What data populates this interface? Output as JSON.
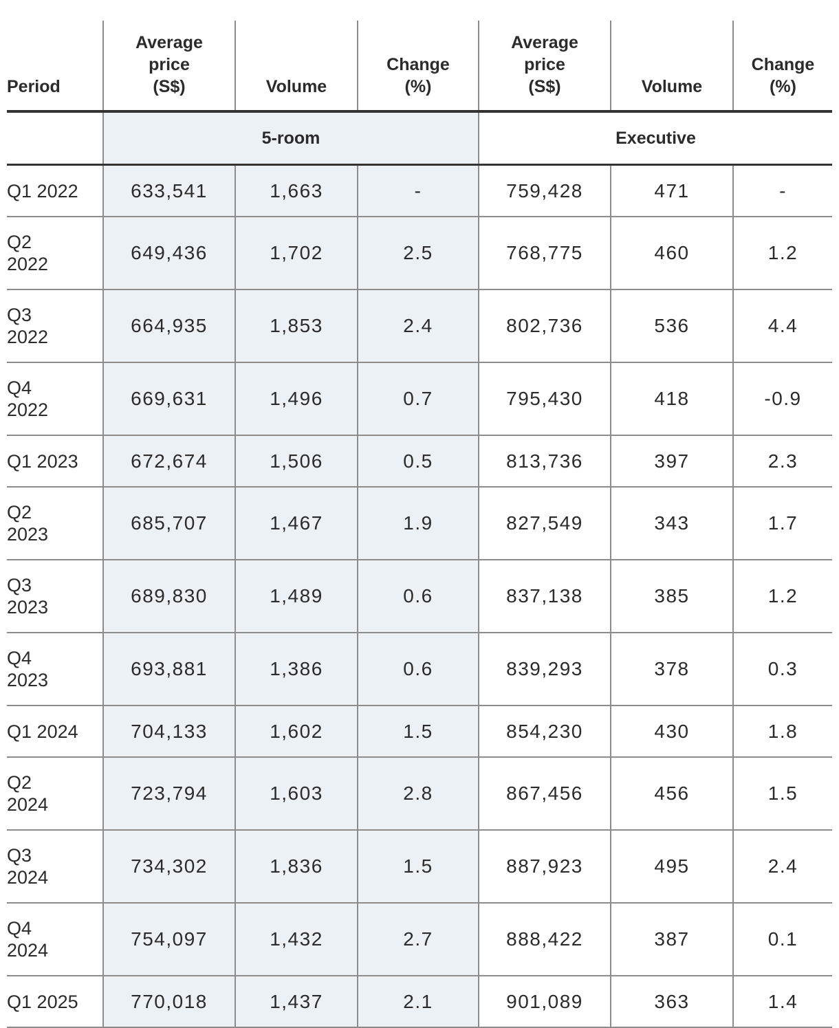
{
  "header": {
    "period": "Period",
    "avg_price": [
      "Average",
      "price",
      "(S$)"
    ],
    "volume": "Volume",
    "change": [
      "Change",
      "(%)"
    ]
  },
  "groups": {
    "five_room": "5-room",
    "executive": "Executive"
  },
  "rows": [
    {
      "q": "Q1",
      "y": "2022",
      "wrap": false,
      "p5": "633,541",
      "v5": "1,663",
      "c5": "-",
      "pe": "759,428",
      "ve": "471",
      "ce": "-"
    },
    {
      "q": "Q2",
      "y": "2022",
      "wrap": true,
      "p5": "649,436",
      "v5": "1,702",
      "c5": "2.5",
      "pe": "768,775",
      "ve": "460",
      "ce": "1.2"
    },
    {
      "q": "Q3",
      "y": "2022",
      "wrap": true,
      "p5": "664,935",
      "v5": "1,853",
      "c5": "2.4",
      "pe": "802,736",
      "ve": "536",
      "ce": "4.4"
    },
    {
      "q": "Q4",
      "y": "2022",
      "wrap": true,
      "p5": "669,631",
      "v5": "1,496",
      "c5": "0.7",
      "pe": "795,430",
      "ve": "418",
      "ce": "-0.9"
    },
    {
      "q": "Q1",
      "y": "2023",
      "wrap": false,
      "p5": "672,674",
      "v5": "1,506",
      "c5": "0.5",
      "pe": "813,736",
      "ve": "397",
      "ce": "2.3"
    },
    {
      "q": "Q2",
      "y": "2023",
      "wrap": true,
      "p5": "685,707",
      "v5": "1,467",
      "c5": "1.9",
      "pe": "827,549",
      "ve": "343",
      "ce": "1.7"
    },
    {
      "q": "Q3",
      "y": "2023",
      "wrap": true,
      "p5": "689,830",
      "v5": "1,489",
      "c5": "0.6",
      "pe": "837,138",
      "ve": "385",
      "ce": "1.2"
    },
    {
      "q": "Q4",
      "y": "2023",
      "wrap": true,
      "p5": "693,881",
      "v5": "1,386",
      "c5": "0.6",
      "pe": "839,293",
      "ve": "378",
      "ce": "0.3"
    },
    {
      "q": "Q1",
      "y": "2024",
      "wrap": false,
      "p5": "704,133",
      "v5": "1,602",
      "c5": "1.5",
      "pe": "854,230",
      "ve": "430",
      "ce": "1.8"
    },
    {
      "q": "Q2",
      "y": "2024",
      "wrap": true,
      "p5": "723,794",
      "v5": "1,603",
      "c5": "2.8",
      "pe": "867,456",
      "ve": "456",
      "ce": "1.5"
    },
    {
      "q": "Q3",
      "y": "2024",
      "wrap": true,
      "p5": "734,302",
      "v5": "1,836",
      "c5": "1.5",
      "pe": "887,923",
      "ve": "495",
      "ce": "2.4"
    },
    {
      "q": "Q4",
      "y": "2024",
      "wrap": true,
      "p5": "754,097",
      "v5": "1,432",
      "c5": "2.7",
      "pe": "888,422",
      "ve": "387",
      "ce": "0.1"
    },
    {
      "q": "Q1",
      "y": "2025",
      "wrap": false,
      "p5": "770,018",
      "v5": "1,437",
      "c5": "2.1",
      "pe": "901,089",
      "ve": "363",
      "ce": "1.4"
    }
  ]
}
